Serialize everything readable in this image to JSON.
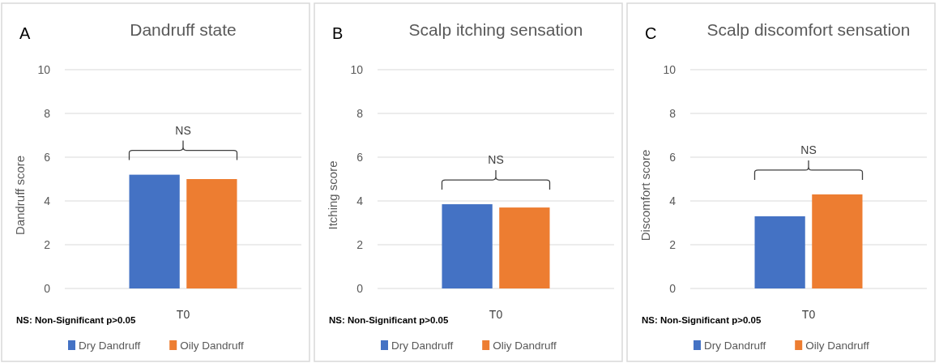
{
  "chart_data": [
    {
      "type": "bar",
      "title": "Dandruff state",
      "ylabel": "Dandruff score",
      "categories": [
        "T0"
      ],
      "series": [
        {
          "name": "Dry Dandruff",
          "color": "#4472c4",
          "values": [
            5.2
          ]
        },
        {
          "name": "Oily Dandruff",
          "color": "#ed7d31",
          "values": [
            5.0
          ]
        }
      ],
      "ylim": [
        0,
        10
      ],
      "yticks": [
        0,
        2,
        4,
        6,
        8,
        10
      ],
      "grid": "y",
      "legend": "bottom",
      "annotations": [
        "A",
        "NS",
        "NS: Non-Significant p>0.05"
      ]
    },
    {
      "type": "bar",
      "title": "Scalp itching sensation",
      "ylabel": "Itching score",
      "categories": [
        "T0"
      ],
      "series": [
        {
          "name": "Dry Dandruff",
          "color": "#4472c4",
          "values": [
            3.85
          ]
        },
        {
          "name": "Oliy Dandruff",
          "color": "#ed7d31",
          "values": [
            3.7
          ]
        }
      ],
      "ylim": [
        0,
        10
      ],
      "yticks": [
        0,
        2,
        4,
        6,
        8,
        10
      ],
      "grid": "y",
      "legend": "bottom",
      "annotations": [
        "B",
        "NS",
        "NS: Non-Significant p>0.05"
      ]
    },
    {
      "type": "bar",
      "title": "Scalp discomfort sensation",
      "ylabel": "Discomfort score",
      "categories": [
        "T0"
      ],
      "series": [
        {
          "name": "Dry Dandruff",
          "color": "#4472c4",
          "values": [
            3.3
          ]
        },
        {
          "name": "Oily Dandruff",
          "color": "#ed7d31",
          "values": [
            4.3
          ]
        }
      ],
      "ylim": [
        0,
        10
      ],
      "yticks": [
        0,
        2,
        4,
        6,
        8,
        10
      ],
      "grid": "y",
      "legend": "bottom",
      "annotations": [
        "C",
        "NS",
        "NS: Non-Significant p>0.05"
      ]
    }
  ]
}
